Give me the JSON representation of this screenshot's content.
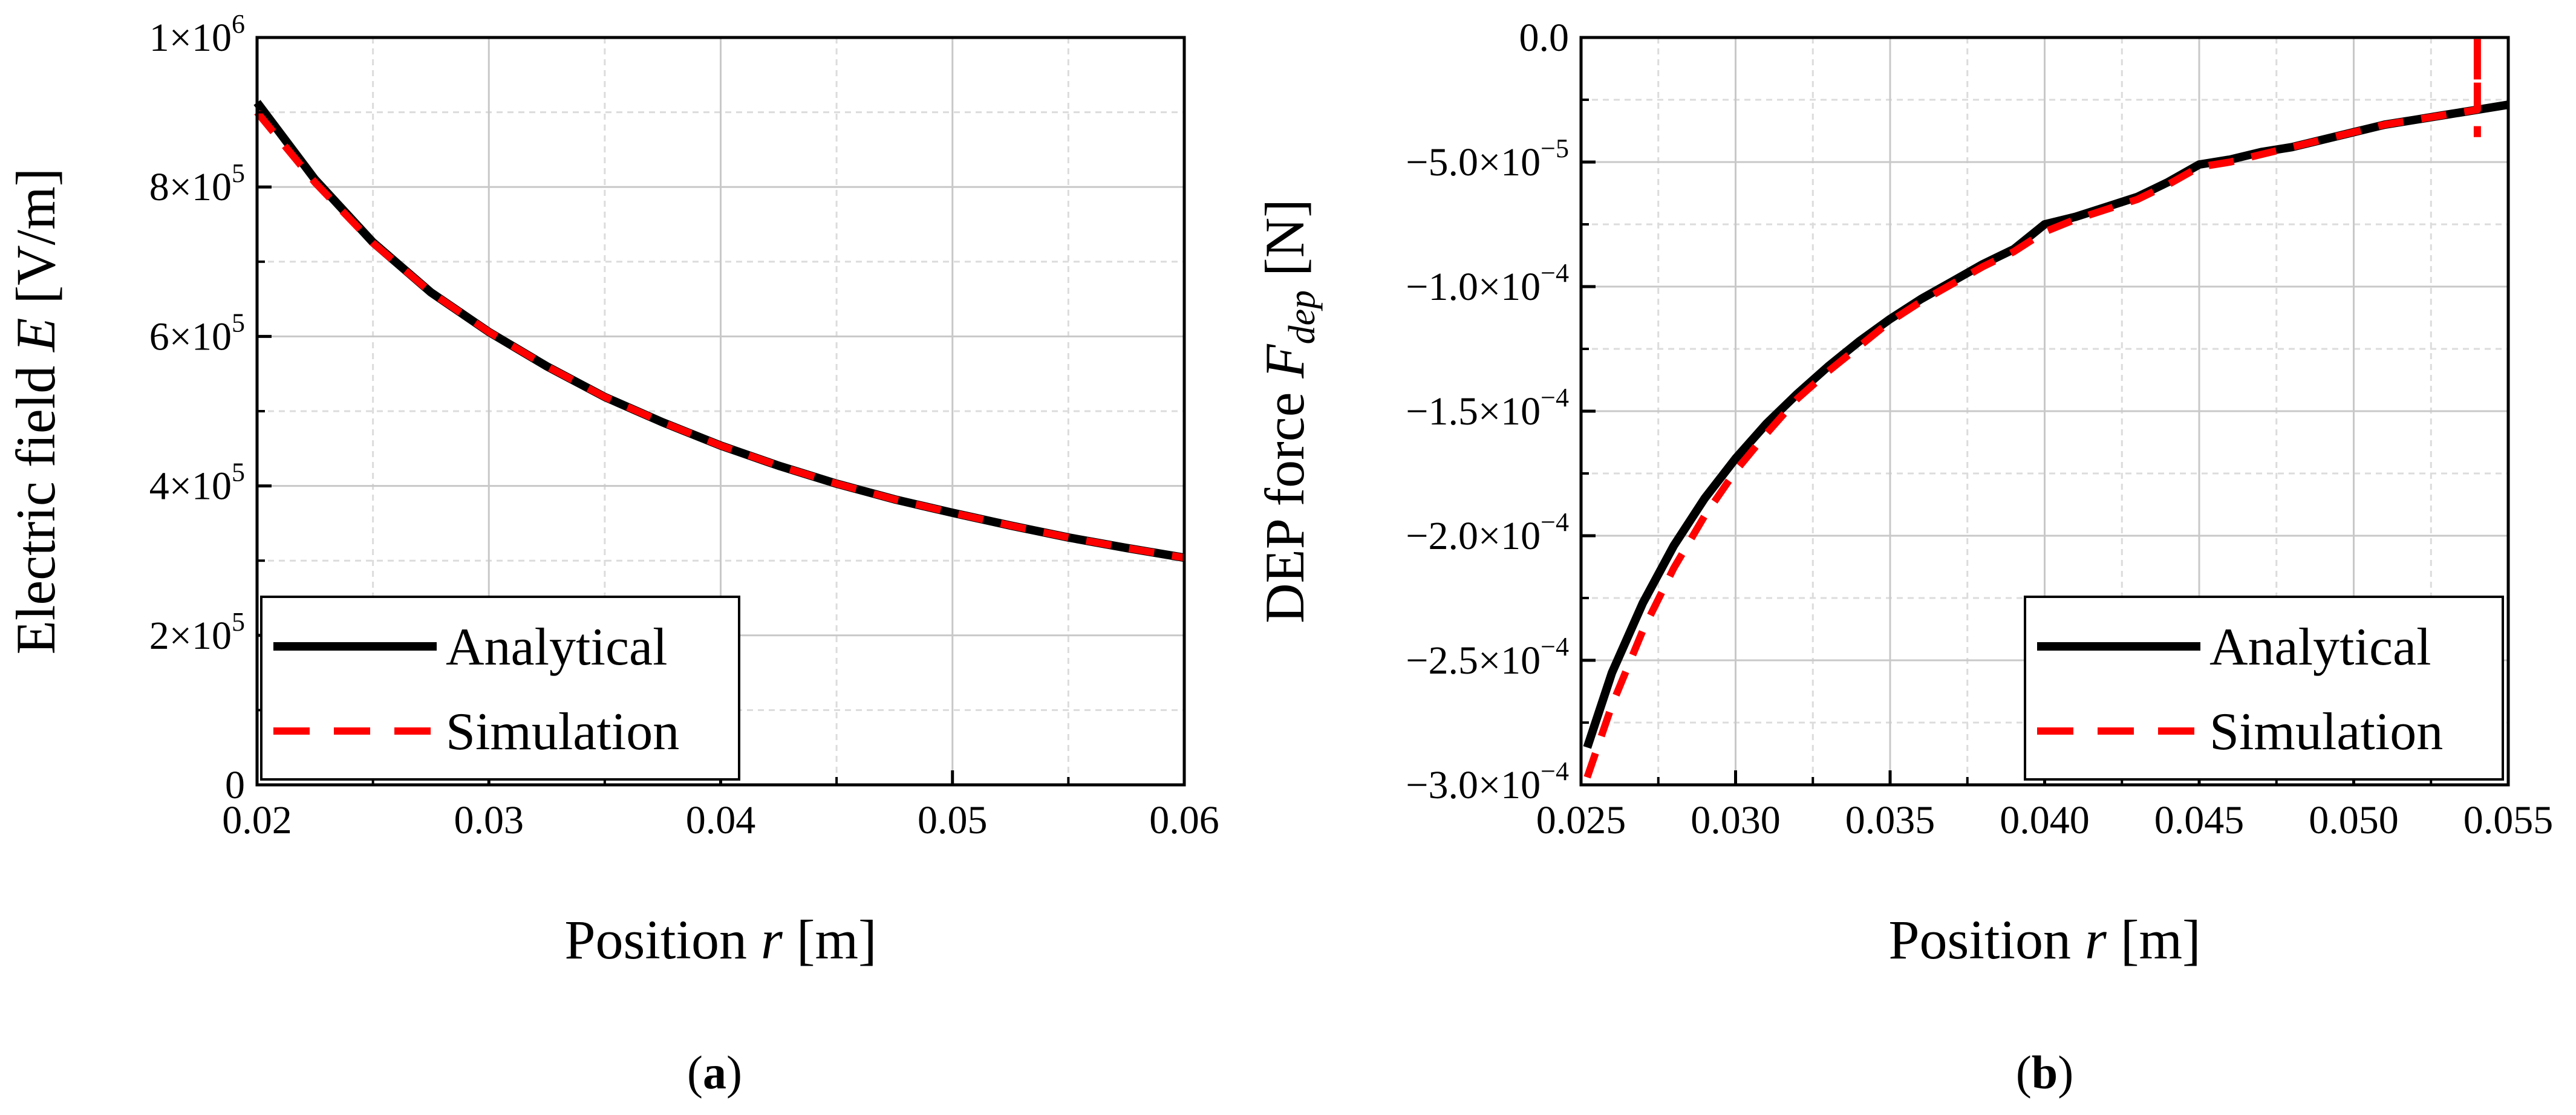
{
  "chart_data": [
    {
      "type": "line",
      "panel_label": "a",
      "xlabel": "Position",
      "xlabel_var": "r",
      "xlabel_unit": "[m]",
      "ylabel": "Electric field",
      "ylabel_var": "E",
      "ylabel_unit": "[V/m]",
      "xlim": [
        0.02,
        0.06
      ],
      "ylim": [
        0,
        1000000
      ],
      "x_ticks": [
        {
          "value": 0.02,
          "label": "0.02"
        },
        {
          "value": 0.03,
          "label": "0.03"
        },
        {
          "value": 0.04,
          "label": "0.04"
        },
        {
          "value": 0.05,
          "label": "0.05"
        },
        {
          "value": 0.06,
          "label": "0.06"
        }
      ],
      "y_ticks": [
        {
          "value": 0,
          "mant": "0",
          "exp": ""
        },
        {
          "value": 200000,
          "mant": "2×10",
          "exp": "5"
        },
        {
          "value": 400000,
          "mant": "4×10",
          "exp": "5"
        },
        {
          "value": 600000,
          "mant": "6×10",
          "exp": "5"
        },
        {
          "value": 800000,
          "mant": "8×10",
          "exp": "5"
        },
        {
          "value": 1000000,
          "mant": "1×10",
          "exp": "6"
        }
      ],
      "grid": true,
      "legend_position": "bottom-left",
      "series": [
        {
          "name": "Analytical",
          "color": "#000000",
          "style": "solid",
          "x": [
            0.02,
            0.0225,
            0.025,
            0.0275,
            0.03,
            0.0325,
            0.035,
            0.0375,
            0.04,
            0.0425,
            0.045,
            0.0475,
            0.05,
            0.0525,
            0.055,
            0.0575,
            0.06
          ],
          "y": [
            913000,
            810000,
            726000,
            659000,
            606000,
            560000,
            519000,
            485000,
            454000,
            427000,
            403000,
            382000,
            364000,
            347000,
            331000,
            317000,
            304000
          ]
        },
        {
          "name": "Simulation",
          "color": "#ff0000",
          "style": "dashed",
          "x": [
            0.02,
            0.0225,
            0.025,
            0.0275,
            0.03,
            0.0325,
            0.035,
            0.0375,
            0.04,
            0.0425,
            0.045,
            0.0475,
            0.05,
            0.0525,
            0.055,
            0.0575,
            0.06
          ],
          "y": [
            900000,
            806000,
            725000,
            659000,
            606000,
            560000,
            519000,
            485000,
            454000,
            427000,
            403000,
            382000,
            364000,
            347000,
            331000,
            317000,
            304000
          ]
        }
      ]
    },
    {
      "type": "line",
      "panel_label": "b",
      "xlabel": "Position",
      "xlabel_var": "r",
      "xlabel_unit": "[m]",
      "ylabel": "DEP force",
      "ylabel_var": "F",
      "ylabel_sub": "dep",
      "ylabel_unit": "[N]",
      "xlim": [
        0.025,
        0.055
      ],
      "ylim": [
        -0.0003,
        0
      ],
      "x_ticks": [
        {
          "value": 0.025,
          "label": "0.025"
        },
        {
          "value": 0.03,
          "label": "0.030"
        },
        {
          "value": 0.035,
          "label": "0.035"
        },
        {
          "value": 0.04,
          "label": "0.040"
        },
        {
          "value": 0.045,
          "label": "0.045"
        },
        {
          "value": 0.05,
          "label": "0.050"
        },
        {
          "value": 0.055,
          "label": "0.055"
        }
      ],
      "y_ticks": [
        {
          "value": 0,
          "mant": "0.0",
          "exp": ""
        },
        {
          "value": -5e-05,
          "mant": "−5.0×10",
          "exp": "−5"
        },
        {
          "value": -0.0001,
          "mant": "−1.0×10",
          "exp": "−4"
        },
        {
          "value": -0.00015,
          "mant": "−1.5×10",
          "exp": "−4"
        },
        {
          "value": -0.0002,
          "mant": "−2.0×10",
          "exp": "−4"
        },
        {
          "value": -0.00025,
          "mant": "−2.5×10",
          "exp": "−4"
        },
        {
          "value": -0.0003,
          "mant": "−3.0×10",
          "exp": "−4"
        }
      ],
      "grid": true,
      "legend_position": "bottom-right",
      "series": [
        {
          "name": "Analytical",
          "color": "#000000",
          "style": "solid",
          "x": [
            0.0252,
            0.026,
            0.027,
            0.028,
            0.029,
            0.03,
            0.031,
            0.032,
            0.033,
            0.034,
            0.035,
            0.036,
            0.037,
            0.038,
            0.039,
            0.04,
            0.041,
            0.042,
            0.043,
            0.044,
            0.045,
            0.046,
            0.047,
            0.048,
            0.049,
            0.05,
            0.051,
            0.052,
            0.053,
            0.054,
            0.055
          ],
          "y": [
            -0.000285,
            -0.000255,
            -0.000227,
            -0.000204,
            -0.000185,
            -0.000169,
            -0.000155,
            -0.000143,
            -0.000132,
            -0.000122,
            -0.000113,
            -0.000105,
            -9.8e-05,
            -9.1e-05,
            -8.5e-05,
            -7.5e-05,
            -7.2e-05,
            -6.8e-05,
            -6.4e-05,
            -5.8e-05,
            -5.1e-05,
            -4.9e-05,
            -4.6e-05,
            -4.4e-05,
            -4.1e-05,
            -3.8e-05,
            -3.5e-05,
            -3.3e-05,
            -3.1e-05,
            -2.9e-05,
            -2.7e-05
          ]
        },
        {
          "name": "Simulation",
          "color": "#ff0000",
          "style": "dashed",
          "x": [
            0.0252,
            0.026,
            0.027,
            0.028,
            0.029,
            0.03,
            0.031,
            0.032,
            0.033,
            0.034,
            0.035,
            0.036,
            0.037,
            0.038,
            0.039,
            0.04,
            0.041,
            0.042,
            0.043,
            0.044,
            0.045,
            0.046,
            0.047,
            0.048,
            0.049,
            0.05,
            0.051,
            0.052,
            0.053,
            0.054,
            0.054,
            0.054
          ],
          "y": [
            -0.000297,
            -0.000268,
            -0.000238,
            -0.000213,
            -0.000192,
            -0.000174,
            -0.000159,
            -0.000145,
            -0.000134,
            -0.000124,
            -0.000114,
            -0.000106,
            -9.9e-05,
            -9.2e-05,
            -8.6e-05,
            -7.8e-05,
            -7.3e-05,
            -6.9e-05,
            -6.5e-05,
            -5.9e-05,
            -5.2e-05,
            -5e-05,
            -4.7e-05,
            -4.4e-05,
            -4.1e-05,
            -3.8e-05,
            -3.5e-05,
            -3.3e-05,
            -3.1e-05,
            -2.9e-05,
            0,
            -4e-05
          ]
        }
      ]
    }
  ]
}
